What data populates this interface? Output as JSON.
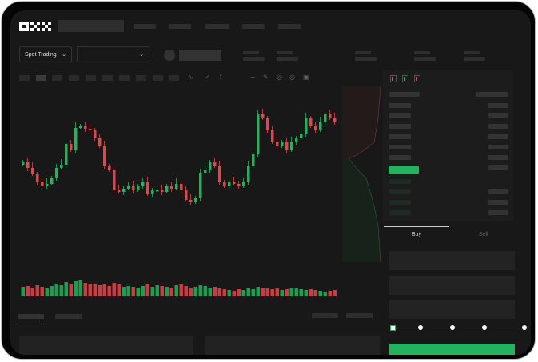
{
  "brand": {
    "logo_text": "OKX"
  },
  "header": {
    "nav_placeholders": 5
  },
  "trade_bar": {
    "mode_select": "Spot Trading",
    "pair_select": ""
  },
  "order_form": {
    "tabs": [
      {
        "label": "Buy",
        "active": true
      },
      {
        "label": "Sell",
        "active": false
      }
    ],
    "slider_percent": 0
  },
  "colors": {
    "up": "#22b35e",
    "down": "#e0474c",
    "background": "#181818",
    "panel": "#1c1c1c"
  },
  "icons": [
    "chevron-down-icon",
    "orderbook-both-icon",
    "orderbook-buy-icon",
    "orderbook-sell-icon",
    "indicator-icon",
    "draw-line-icon",
    "settings-icon"
  ],
  "chart": {
    "closes": [
      55,
      48,
      40,
      30,
      25,
      28,
      35,
      48,
      52,
      78,
      70,
      98,
      100,
      97,
      95,
      85,
      75,
      50,
      45,
      20,
      18,
      22,
      25,
      20,
      25,
      30,
      15,
      20,
      20,
      18,
      25,
      22,
      28,
      20,
      8,
      5,
      10,
      42,
      45,
      55,
      50,
      30,
      25,
      30,
      28,
      25,
      30,
      50,
      65,
      115,
      110,
      95,
      80,
      75,
      80,
      70,
      80,
      85,
      90,
      110,
      100,
      95,
      105,
      115,
      110,
      105
    ],
    "volumes": [
      12,
      13,
      11,
      14,
      12,
      10,
      13,
      16,
      14,
      18,
      15,
      19,
      20,
      17,
      16,
      15,
      14,
      16,
      13,
      17,
      15,
      12,
      13,
      12,
      11,
      13,
      16,
      12,
      14,
      13,
      12,
      11,
      14,
      15,
      13,
      10,
      12,
      14,
      13,
      11,
      12,
      10,
      9,
      8,
      7,
      9,
      8,
      10,
      9,
      12,
      11,
      10,
      9,
      10,
      8,
      9,
      11,
      10,
      9,
      8,
      9,
      8,
      7,
      6,
      7,
      8
    ]
  }
}
